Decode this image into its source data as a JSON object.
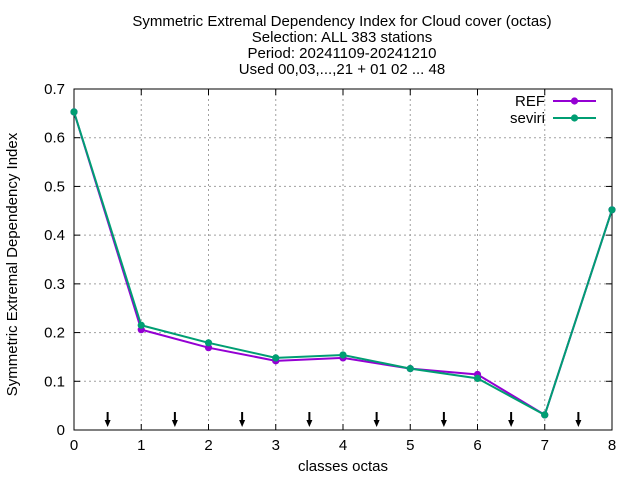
{
  "chart_data": {
    "type": "line",
    "title_lines": [
      "Symmetric Extremal Dependency Index  for Cloud cover (octas)",
      "Selection: ALL    383 stations",
      "Period: 20241109-20241210",
      "Used 00,03,...,21 + 01 02 ... 48"
    ],
    "xlabel": "classes octas",
    "ylabel": "Symmetric Extremal Dependency Index",
    "xlim": [
      0,
      8
    ],
    "ylim": [
      0,
      0.7
    ],
    "xticks": [
      0,
      1,
      2,
      3,
      4,
      5,
      6,
      7,
      8
    ],
    "yticks": [
      0,
      0.1,
      0.2,
      0.3,
      0.4,
      0.5,
      0.6,
      0.7
    ],
    "xtick_labels": [
      "0",
      "1",
      "2",
      "3",
      "4",
      "5",
      "6",
      "7",
      "8"
    ],
    "ytick_labels": [
      "0",
      "0.1",
      "0.2",
      "0.3",
      "0.4",
      "0.5",
      "0.6",
      "0.7"
    ],
    "grid": true,
    "legend_position": "top-right",
    "x": [
      0,
      1,
      2,
      3,
      4,
      5,
      6,
      7,
      8
    ],
    "series": [
      {
        "name": "REF",
        "color": "#9400d3",
        "values": [
          0.653,
          0.206,
          0.169,
          0.142,
          0.148,
          0.126,
          0.114,
          0.031,
          0.452
        ]
      },
      {
        "name": "seviri",
        "color": "#009e73",
        "values": [
          0.653,
          0.215,
          0.179,
          0.148,
          0.154,
          0.126,
          0.106,
          0.031,
          0.452
        ]
      }
    ],
    "arrow_markers_x": [
      0.5,
      1.5,
      2.5,
      3.5,
      4.5,
      5.5,
      6.5,
      7.5
    ]
  }
}
